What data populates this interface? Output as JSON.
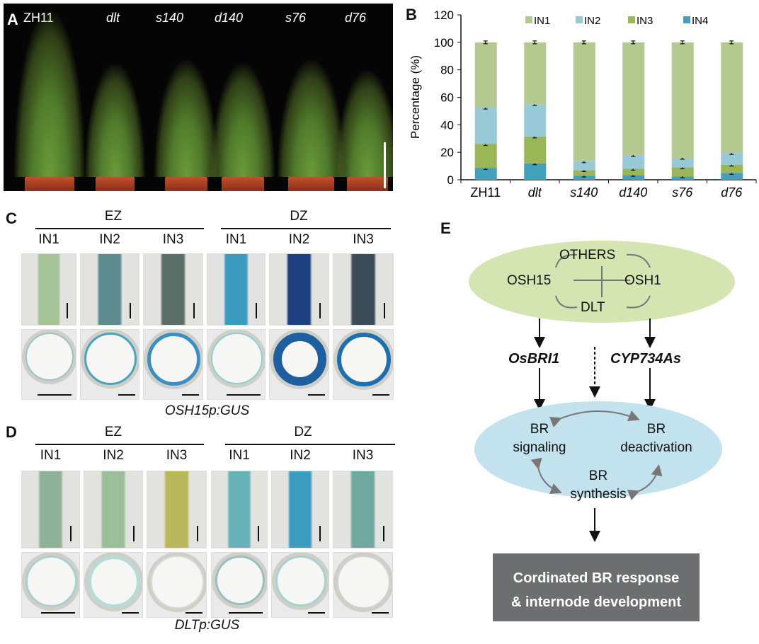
{
  "panels": {
    "a": "A",
    "b": "B",
    "c": "C",
    "d": "D",
    "e": "E"
  },
  "panelA": {
    "genotypes": [
      "ZH11",
      "dlt",
      "s140",
      "d140",
      "s76",
      "d76"
    ]
  },
  "panelC": {
    "groups": [
      "EZ",
      "DZ"
    ],
    "internodes": [
      "IN1",
      "IN2",
      "IN3",
      "IN1",
      "IN2",
      "IN3"
    ],
    "caption": "OSH15p:GUS"
  },
  "panelD": {
    "groups": [
      "EZ",
      "DZ"
    ],
    "internodes": [
      "IN1",
      "IN2",
      "IN3",
      "IN1",
      "IN2",
      "IN3"
    ],
    "caption": "DLTp:GUS"
  },
  "panelE": {
    "complex": {
      "top": "OTHERS",
      "left": "OSH15",
      "right": "OSH1",
      "bottom": "DLT"
    },
    "targets": {
      "left": "OsBRI1",
      "right": "CYP734As"
    },
    "br": {
      "signaling_1": "BR",
      "signaling_2": "signaling",
      "deactivation_1": "BR",
      "deactivation_2": "deactivation",
      "synthesis_1": "BR",
      "synthesis_2": "synthesis"
    },
    "outcome_1": "Cordinated BR response",
    "outcome_2": "& internode development"
  },
  "chart_data": {
    "type": "bar",
    "stacked": true,
    "categories": [
      "ZH11",
      "dlt",
      "s140",
      "d140",
      "s76",
      "d76"
    ],
    "italic_categories": [
      false,
      true,
      true,
      true,
      true,
      true
    ],
    "ylabel": "Percentage (%)",
    "ylim": [
      0,
      120
    ],
    "yticks": [
      0,
      20,
      40,
      60,
      80,
      100,
      120
    ],
    "legend_position": "top",
    "series": [
      {
        "name": "IN4",
        "color": "#43a2bb",
        "values": [
          8.5,
          12,
          3,
          3.5,
          2.5,
          5
        ]
      },
      {
        "name": "IN3",
        "color": "#9ab657",
        "values": [
          17.5,
          19.5,
          4,
          4.5,
          6.5,
          6
        ]
      },
      {
        "name": "IN2",
        "color": "#98c9d6",
        "values": [
          26.5,
          23.5,
          6.5,
          10,
          7,
          8.5
        ]
      },
      {
        "name": "IN1",
        "color": "#b3c98f",
        "values": [
          47.5,
          45,
          86.5,
          82,
          84,
          80.5
        ]
      }
    ],
    "legend_order": [
      "IN1",
      "IN2",
      "IN3",
      "IN4"
    ]
  }
}
